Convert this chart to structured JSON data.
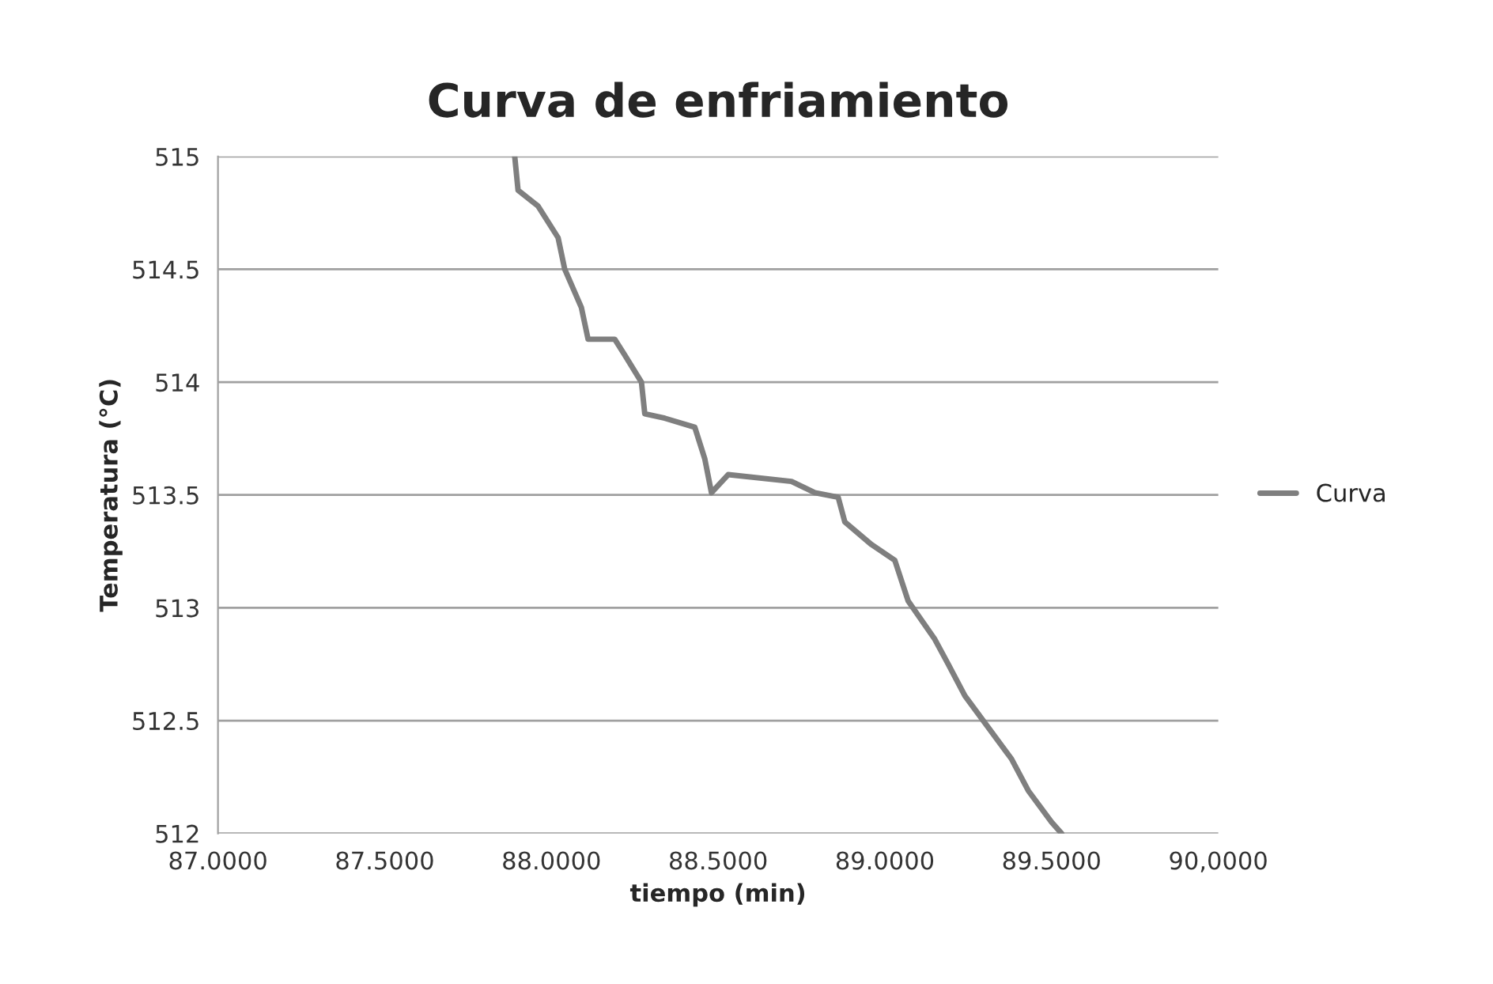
{
  "chart_data": {
    "type": "line",
    "title": "Curva de enfriamiento",
    "xlabel": "tiempo (min)",
    "ylabel": "Temperatura (°C)",
    "xlim": [
      87,
      90
    ],
    "xticks": [
      {
        "value": 87,
        "label": "87.0000"
      },
      {
        "value": 87.5,
        "label": "87.5000"
      },
      {
        "value": 88,
        "label": "88.0000"
      },
      {
        "value": 88.5,
        "label": "88.5000"
      },
      {
        "value": 89,
        "label": "89.0000"
      },
      {
        "value": 89.5,
        "label": "89.5000"
      },
      {
        "value": 90,
        "label": "90,0000"
      }
    ],
    "ylim": [
      512,
      515
    ],
    "yticks": [
      512,
      512.5,
      513,
      513.5,
      514,
      514.5,
      515
    ],
    "grid": "y",
    "legend": "right",
    "series": [
      {
        "name": "Curva",
        "color": "#7f7f7f",
        "x": [
          87.89,
          87.9,
          87.96,
          88.02,
          88.04,
          88.09,
          88.11,
          88.19,
          88.22,
          88.27,
          88.28,
          88.34,
          88.43,
          88.46,
          88.48,
          88.53,
          88.72,
          88.79,
          88.86,
          88.88,
          88.96,
          89.03,
          89.07,
          89.15,
          89.19,
          89.24,
          89.31,
          89.38,
          89.43,
          89.5,
          89.53
        ],
        "values": [
          515.0,
          514.85,
          514.78,
          514.64,
          514.5,
          514.33,
          514.19,
          514.19,
          514.12,
          514.0,
          513.86,
          513.84,
          513.8,
          513.66,
          513.51,
          513.59,
          513.56,
          513.51,
          513.49,
          513.38,
          513.28,
          513.21,
          513.03,
          512.86,
          512.75,
          512.61,
          512.47,
          512.33,
          512.19,
          512.05,
          512.0
        ]
      }
    ]
  }
}
